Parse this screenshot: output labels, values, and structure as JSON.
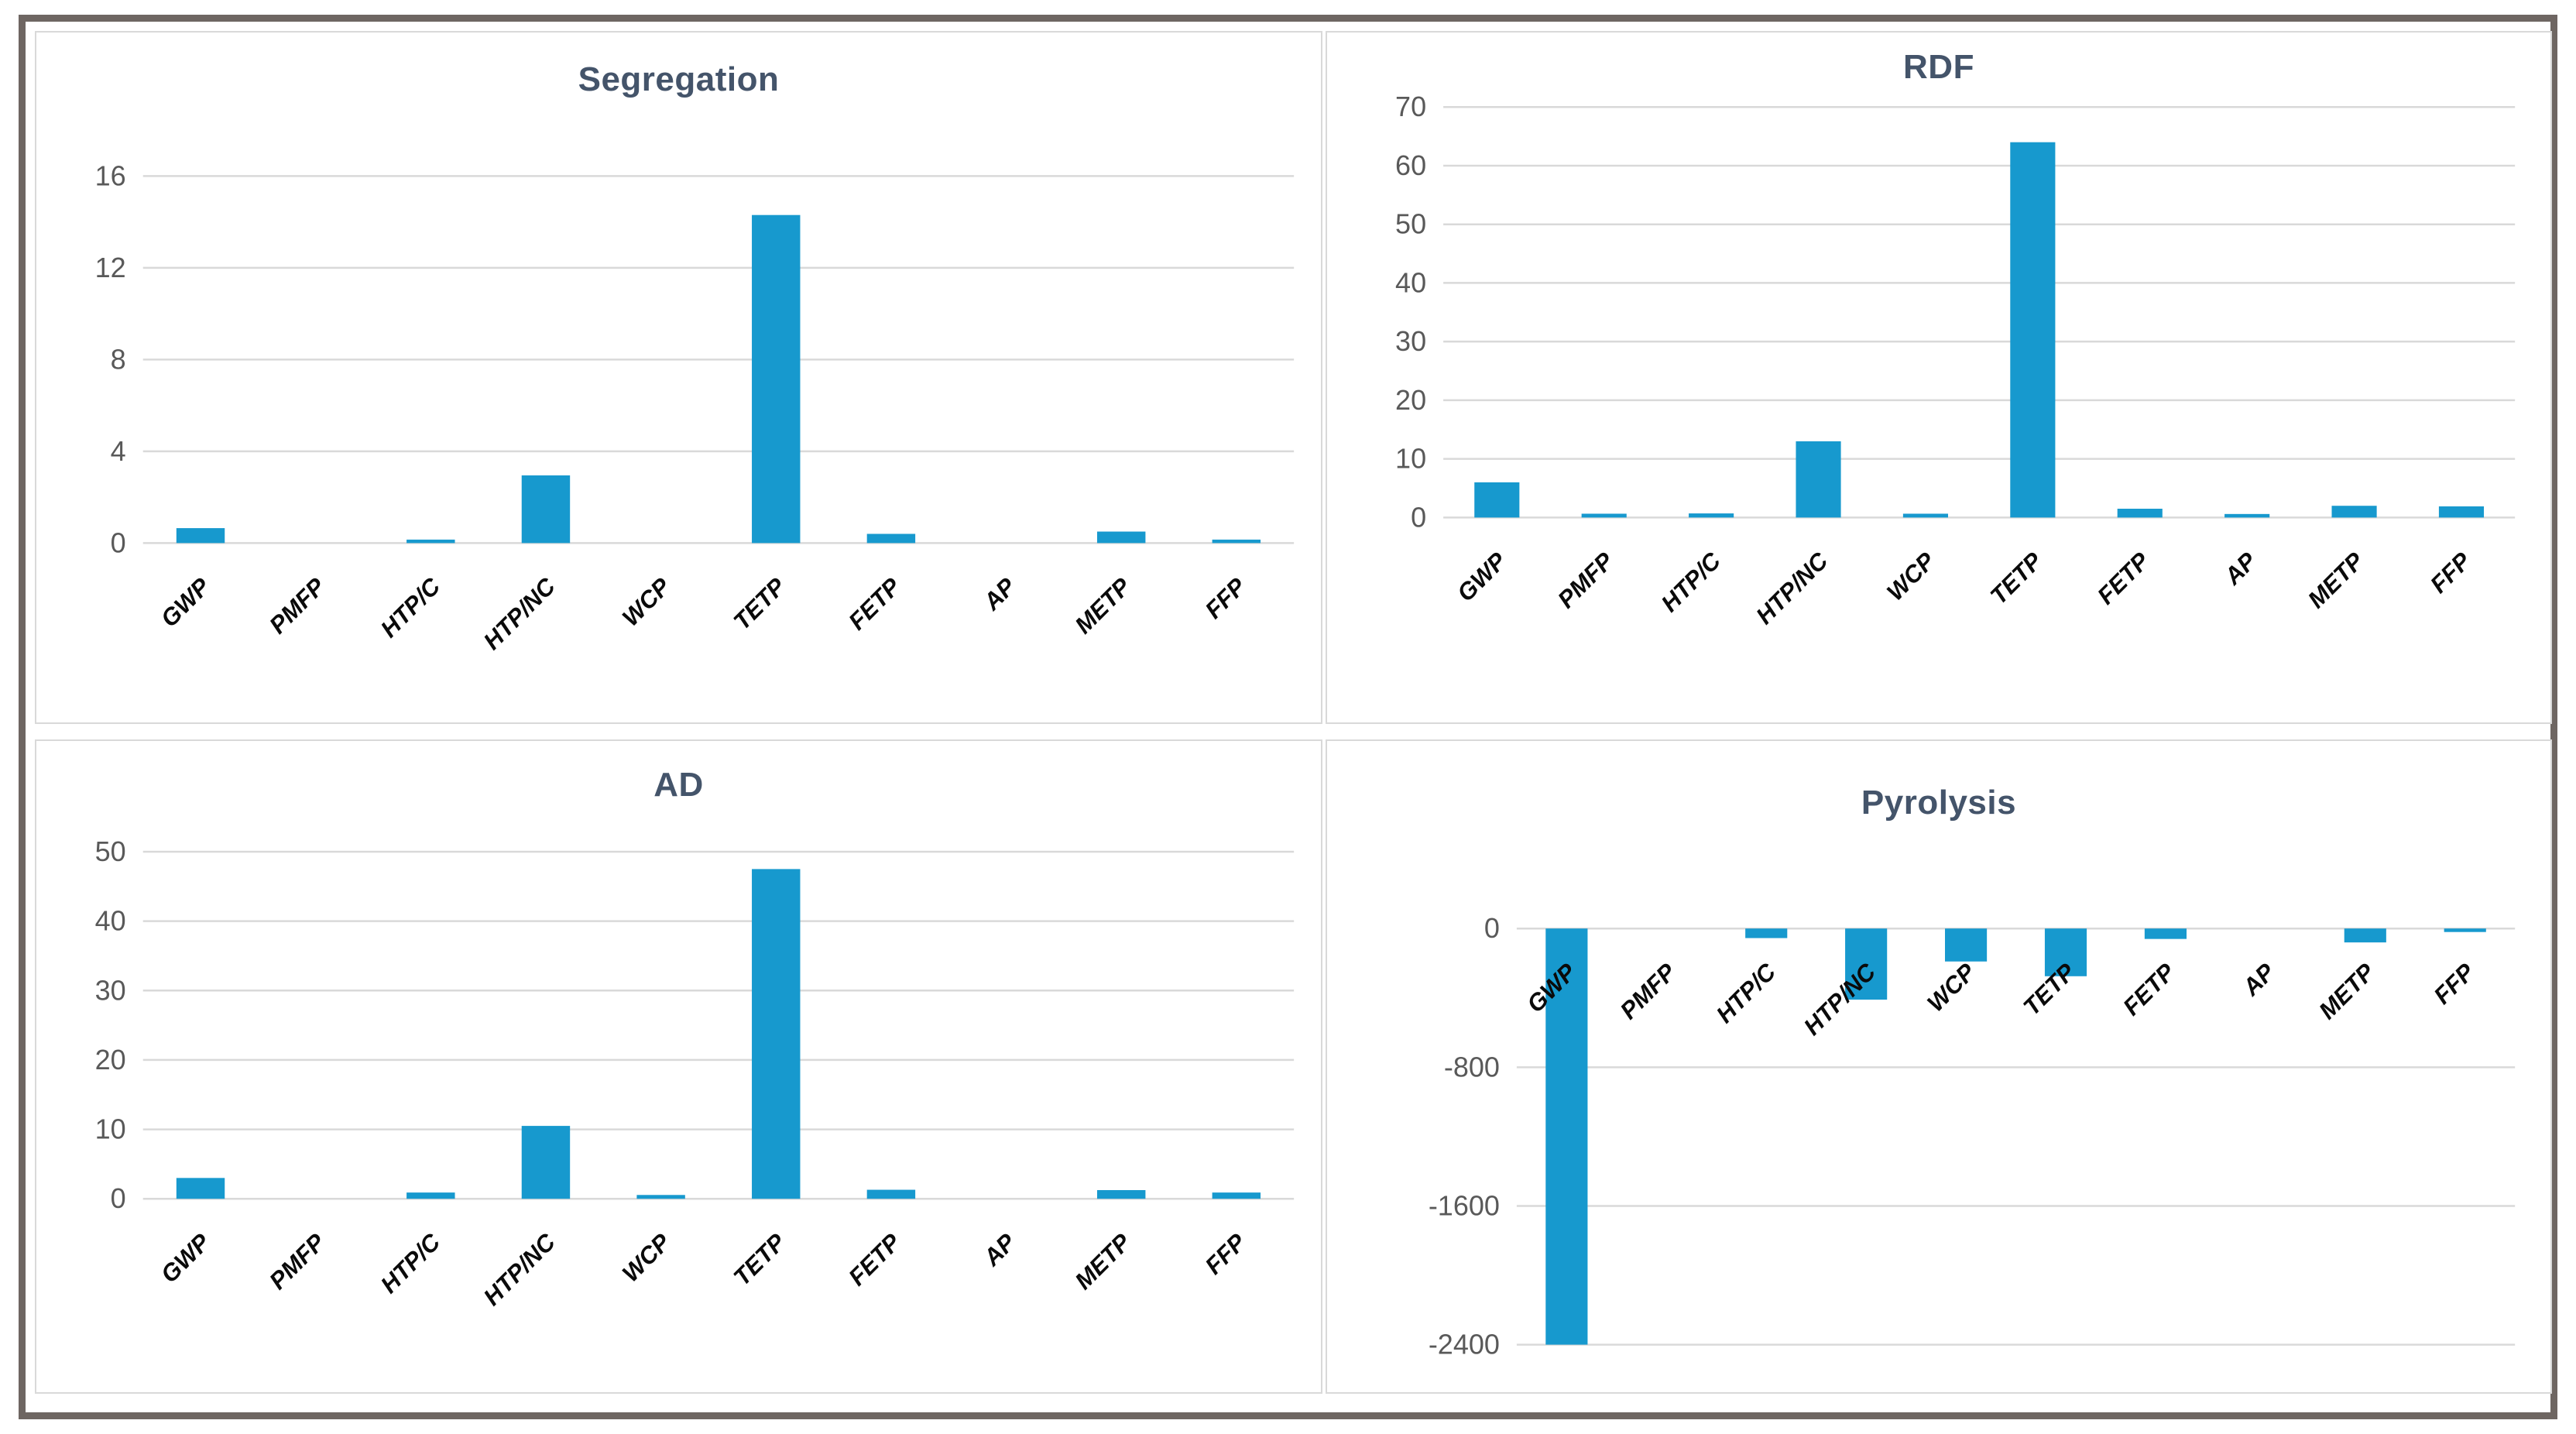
{
  "colors": {
    "bar": "#1799CE",
    "gridline": "#D9D9D9",
    "tick_label": "#595959",
    "title": "#44546A",
    "category_label": "#0A0A0A",
    "outer_border": "#6E6662",
    "panel_border": "#D9D9D9",
    "background": "#FFFFFF"
  },
  "chart_data": [
    {
      "type": "bar",
      "title": "Segregation",
      "categories": [
        "GWP",
        "PMFP",
        "HTP/C",
        "HTP/NC",
        "WCP",
        "TETP",
        "FETP",
        "AP",
        "METP",
        "FFP"
      ],
      "values": [
        0.65,
        0,
        0.15,
        2.95,
        0,
        14.3,
        0.4,
        0,
        0.5,
        0.15
      ],
      "xlabel": "",
      "ylabel": "",
      "ylim": [
        0,
        16
      ],
      "yticks": [
        0,
        4,
        8,
        12,
        16
      ],
      "grid": true,
      "legend": "none"
    },
    {
      "type": "bar",
      "title": "RDF",
      "categories": [
        "GWP",
        "PMFP",
        "HTP/C",
        "HTP/NC",
        "WCP",
        "TETP",
        "FETP",
        "AP",
        "METP",
        "FFP"
      ],
      "values": [
        6,
        0.65,
        0.7,
        13,
        0.65,
        64,
        1.5,
        0.6,
        2,
        1.9
      ],
      "xlabel": "",
      "ylabel": "",
      "ylim": [
        0,
        70
      ],
      "yticks": [
        0,
        10,
        20,
        30,
        40,
        50,
        60,
        70
      ],
      "grid": true,
      "legend": "none"
    },
    {
      "type": "bar",
      "title": "AD",
      "categories": [
        "GWP",
        "PMFP",
        "HTP/C",
        "HTP/NC",
        "WCP",
        "TETP",
        "FETP",
        "AP",
        "METP",
        "FFP"
      ],
      "values": [
        3,
        0,
        0.9,
        10.5,
        0.55,
        47.5,
        1.3,
        0,
        1.25,
        0.9
      ],
      "xlabel": "",
      "ylabel": "",
      "ylim": [
        0,
        50
      ],
      "yticks": [
        0,
        10,
        20,
        30,
        40,
        50
      ],
      "grid": true,
      "legend": "none"
    },
    {
      "type": "bar",
      "title": "Pyrolysis",
      "categories": [
        "GWP",
        "PMFP",
        "HTP/C",
        "HTP/NC",
        "WCP",
        "TETP",
        "FETP",
        "AP",
        "METP",
        "FFP"
      ],
      "values": [
        -2400,
        0,
        -55,
        -410,
        -190,
        -275,
        -60,
        0,
        -80,
        -20
      ],
      "xlabel": "",
      "ylabel": "",
      "ylim": [
        -2400,
        0
      ],
      "yticks": [
        0,
        -800,
        -1600,
        -2400
      ],
      "grid": true,
      "legend": "none"
    }
  ]
}
